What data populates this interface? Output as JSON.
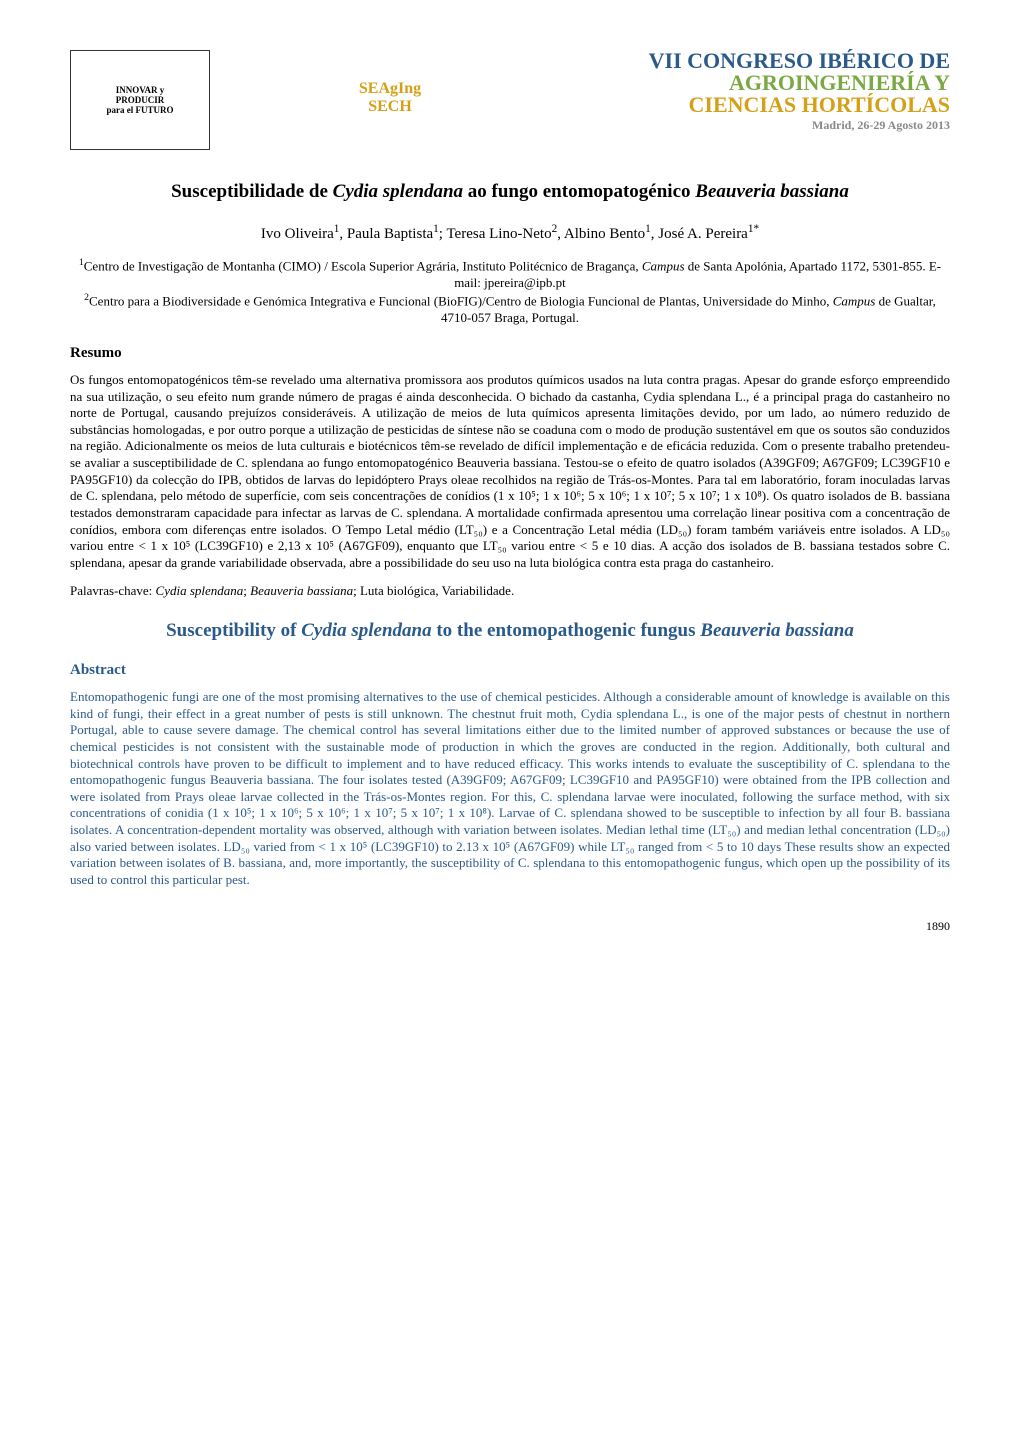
{
  "header": {
    "logo_left": {
      "line1": "INNOVAR y",
      "line2": "PRODUCIR",
      "line3": "para el FUTURO"
    },
    "logo_middle": {
      "line1": "SEAgIng",
      "line2": "SECH"
    },
    "logo_right": {
      "line1": "VII CONGRESO IBÉRICO DE",
      "line2": "AGROINGENIERÍA Y",
      "line3": "CIENCIAS HORTÍCOLAS",
      "line4": "Madrid, 26-29 Agosto 2013"
    }
  },
  "title_pt": {
    "pre": "Susceptibilidade de ",
    "species1": "Cydia splendana",
    "mid": " ao fungo entomopatogénico ",
    "species2": "Beauveria bassiana"
  },
  "authors": {
    "a1": "Ivo Oliveira",
    "s1": "1",
    "a2": "Paula Baptista",
    "s2": "1",
    "a3": "Teresa Lino-Neto",
    "s3": "2",
    "a4": "Albino Bento",
    "s4": "1",
    "a5": "José A. Pereira",
    "s5": "1*"
  },
  "affiliations": {
    "aff1_sup": "1",
    "aff1_text": "Centro de Investigação de Montanha (CIMO) / Escola Superior Agrária, Instituto Politécnico de Bragança, ",
    "aff1_campus": "Campus",
    "aff1_rest": " de Santa Apolónia, Apartado 1172, 5301-855. E-mail: jpereira@ipb.pt",
    "aff2_sup": "2",
    "aff2_text": "Centro para a Biodiversidade e Genómica Integrativa e Funcional (BioFIG)/Centro de Biologia Funcional de Plantas, Universidade do Minho, ",
    "aff2_campus": "Campus",
    "aff2_rest": " de Gualtar, 4710-057 Braga, Portugal."
  },
  "resumo_heading": "Resumo",
  "resumo_body": "Os fungos entomopatogénicos têm-se revelado uma alternativa promissora aos produtos químicos usados na luta contra pragas. Apesar do grande esforço empreendido na sua utilização, o seu efeito num grande número de pragas é ainda desconhecida. O bichado da castanha, Cydia splendana L., é a principal praga do castanheiro no norte de Portugal, causando prejuízos consideráveis. A utilização de meios de luta químicos apresenta limitações devido, por um lado, ao número reduzido de substâncias homologadas, e por outro porque a utilização de pesticidas de síntese não se coaduna com o modo de produção sustentável em que os soutos são conduzidos na região. Adicionalmente os meios de luta culturais e biotécnicos têm-se revelado de difícil implementação e de eficácia reduzida. Com o presente trabalho pretendeu-se avaliar a susceptibilidade de C. splendana ao fungo entomopatogénico Beauveria bassiana. Testou-se o efeito de quatro isolados (A39GF09; A67GF09; LC39GF10 e PA95GF10) da colecção do IPB, obtidos de larvas do lepidóptero Prays oleae recolhidos na região de Trás-os-Montes. Para tal em laboratório, foram inoculadas larvas de C. splendana, pelo método de superfície, com seis concentrações de conídios (1 x 10⁵; 1 x 10⁶; 5 x 10⁶; 1 x 10⁷; 5 x 10⁷; 1 x 10⁸). Os quatro isolados de B. bassiana testados demonstraram capacidade para infectar as larvas de C. splendana. A mortalidade confirmada apresentou uma correlação linear positiva com a concentração de conídios, embora com diferenças entre isolados. O Tempo Letal médio (LT₅₀) e a Concentração Letal média (LD₅₀) foram também variáveis entre isolados. A LD₅₀ variou entre < 1 x 10⁵ (LC39GF10) e 2,13 x 10⁵ (A67GF09), enquanto que LT₅₀ variou entre < 5 e 10 dias. A acção dos isolados de B. bassiana testados sobre C. splendana, apesar da grande variabilidade observada, abre a possibilidade do seu uso na luta biológica contra esta praga do castanheiro.",
  "keywords_pt": {
    "label": "Palavras-chave: ",
    "k1": "Cydia splendana",
    "sep1": "; ",
    "k2": "Beauveria bassiana",
    "sep2": "; Luta biológica, Variabilidade."
  },
  "title_en": {
    "pre": "Susceptibility of ",
    "species1": "Cydia splendana",
    "mid": " to the entomopathogenic fungus ",
    "species2": "Beauveria bassiana"
  },
  "abstract_heading": "Abstract",
  "abstract_body": "Entomopathogenic fungi are one of the most promising alternatives to the use of chemical pesticides. Although a considerable amount of knowledge is available on this kind of fungi, their effect in a great number of pests is still unknown. The chestnut fruit moth, Cydia splendana L., is one of the major pests of chestnut in northern Portugal, able to cause severe damage. The chemical control has several limitations either due to the limited number of approved substances or because the use of chemical pesticides is not consistent with the sustainable mode of production in which the groves are conducted in the region. Additionally, both cultural and biotechnical controls have proven to be difficult to implement and to have reduced efficacy. This works intends to evaluate the susceptibility of C. splendana to the entomopathogenic fungus Beauveria bassiana. The four isolates tested (A39GF09; A67GF09; LC39GF10 and PA95GF10) were obtained from the IPB collection and were isolated from Prays oleae larvae collected in the Trás-os-Montes region. For this, C. splendana larvae were inoculated, following the surface method, with six concentrations of conidia (1 x 10⁵; 1 x 10⁶; 5 x 10⁶; 1 x 10⁷; 5 x 10⁷; 1 x 10⁸). Larvae of C. splendana showed to be susceptible to infection by all four B. bassiana isolates. A concentration-dependent mortality was observed, although with variation between isolates. Median lethal time (LT₅₀) and median lethal concentration (LD₅₀) also varied between isolates. LD₅₀ varied from < 1 x 10⁵ (LC39GF10) to 2.13 x 10⁵ (A67GF09) while LT₅₀ ranged from < 5 to 10 days These results show an expected variation between isolates of B. bassiana, and, more importantly, the susceptibility of C. splendana to this entomopathogenic fungus, which open up the possibility of its used to control this particular pest.",
  "page_number": "1890",
  "colors": {
    "blue": "#2a5a8a",
    "green": "#7aa843",
    "gold": "#d4a017",
    "gray": "#888888",
    "black": "#000000",
    "white": "#ffffff"
  },
  "typography": {
    "body_font": "Times New Roman",
    "title_size_pt": 19,
    "author_size_pt": 15,
    "affil_size_pt": 13,
    "body_size_pt": 13,
    "heading_size_pt": 15
  }
}
